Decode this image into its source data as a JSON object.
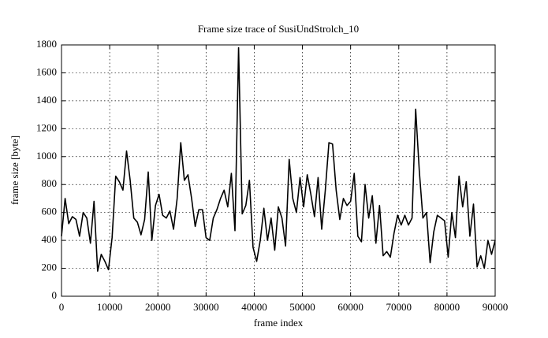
{
  "chart_data": {
    "type": "line",
    "title": "Frame size trace of SusiUndStrolch_10",
    "x_label": "frame index",
    "y_label": "frame size [byte]",
    "xlim": [
      0,
      90000
    ],
    "xticks": [
      0,
      10000,
      20000,
      30000,
      40000,
      50000,
      60000,
      70000,
      80000,
      90000
    ],
    "ylim": [
      0,
      1800
    ],
    "yticks": [
      0,
      200,
      400,
      600,
      800,
      1000,
      1200,
      1400,
      1600,
      1800
    ],
    "grid": true,
    "x": [
      0,
      750,
      1500,
      2250,
      3000,
      3750,
      4500,
      5250,
      6000,
      6750,
      7500,
      8250,
      9000,
      9750,
      10500,
      11250,
      12000,
      12750,
      13500,
      14250,
      15000,
      15750,
      16500,
      17250,
      18000,
      18750,
      19500,
      20250,
      21000,
      21750,
      22500,
      23250,
      24000,
      24750,
      25500,
      26250,
      27000,
      27750,
      28500,
      29250,
      30000,
      30750,
      31500,
      32250,
      33000,
      33750,
      34500,
      35250,
      36000,
      36750,
      37500,
      38250,
      39000,
      39750,
      40500,
      41250,
      42000,
      42750,
      43500,
      44250,
      45000,
      45750,
      46500,
      47250,
      48000,
      48750,
      49500,
      50250,
      51000,
      51750,
      52500,
      53250,
      54000,
      54750,
      55500,
      56250,
      57000,
      57750,
      58500,
      59250,
      60000,
      60750,
      61500,
      62250,
      63000,
      63750,
      64500,
      65250,
      66000,
      66750,
      67500,
      68250,
      69000,
      69750,
      70500,
      71250,
      72000,
      72750,
      73500,
      74250,
      75000,
      75750,
      76500,
      77250,
      78000,
      78750,
      79500,
      80250,
      81000,
      81750,
      82500,
      83250,
      84000,
      84750,
      85500,
      86250,
      87000,
      87750,
      88500,
      89250,
      90000
    ],
    "series": [
      {
        "color": "#000000",
        "values": [
          430,
          700,
          520,
          570,
          550,
          430,
          600,
          560,
          380,
          680,
          180,
          300,
          250,
          190,
          420,
          860,
          820,
          760,
          1040,
          830,
          560,
          530,
          440,
          550,
          890,
          400,
          650,
          730,
          580,
          560,
          610,
          480,
          700,
          1100,
          830,
          870,
          700,
          500,
          620,
          620,
          420,
          400,
          560,
          620,
          700,
          760,
          640,
          880,
          470,
          1780,
          590,
          650,
          830,
          350,
          250,
          400,
          630,
          400,
          560,
          330,
          640,
          560,
          360,
          980,
          700,
          600,
          850,
          640,
          870,
          730,
          570,
          850,
          480,
          760,
          1100,
          1090,
          760,
          550,
          700,
          650,
          680,
          880,
          430,
          390,
          800,
          560,
          720,
          380,
          650,
          290,
          320,
          280,
          450,
          580,
          510,
          580,
          510,
          560,
          1340,
          900,
          560,
          600,
          240,
          460,
          580,
          560,
          540,
          280,
          600,
          420,
          860,
          640,
          820,
          430,
          660,
          210,
          290,
          200,
          400,
          300,
          400
        ]
      }
    ]
  }
}
